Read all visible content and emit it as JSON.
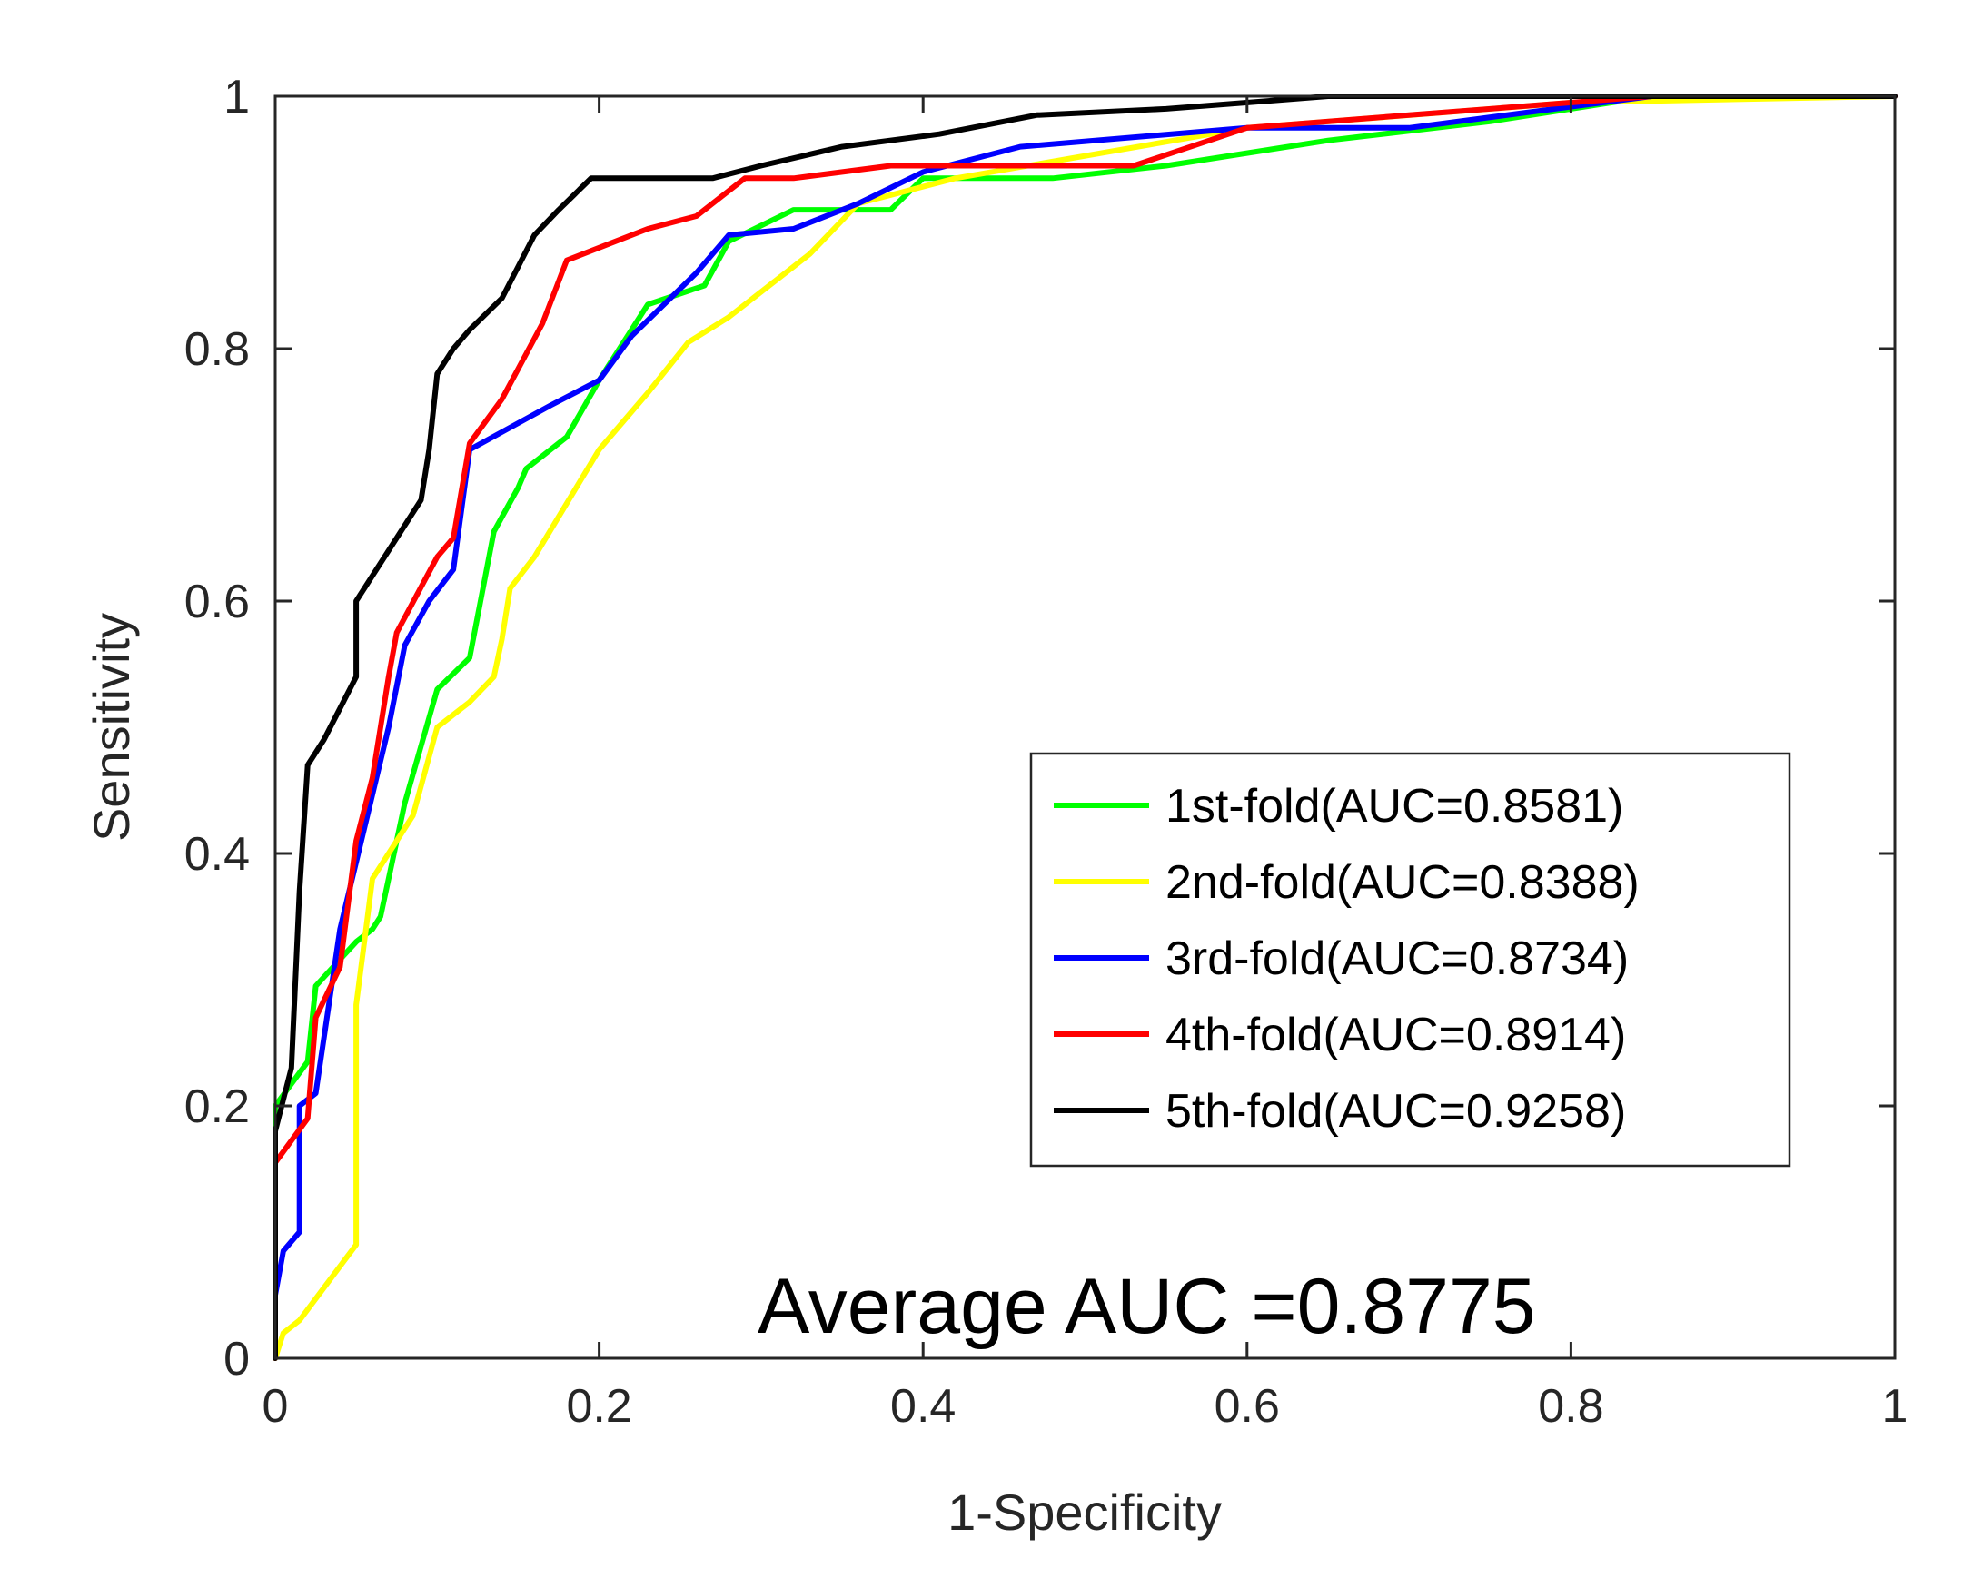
{
  "chart_data": {
    "type": "line",
    "title": "",
    "xlabel": "1-Specificity",
    "ylabel": "Sensitivity",
    "xlim": [
      0,
      1
    ],
    "ylim": [
      0,
      1
    ],
    "xticks": [
      "0",
      "0.2",
      "0.4",
      "0.6",
      "0.8",
      "1"
    ],
    "yticks": [
      "0",
      "0.2",
      "0.4",
      "0.6",
      "0.8",
      "1"
    ],
    "grid": false,
    "legend_position": "center-right",
    "annotation": "Average AUC =0.8775",
    "series": [
      {
        "name": "1st-fold(AUC=0.8581)",
        "color": "#00ff00",
        "x": [
          0,
          0,
          0.02,
          0.025,
          0.05,
          0.06,
          0.065,
          0.08,
          0.1,
          0.12,
          0.135,
          0.15,
          0.155,
          0.18,
          0.2,
          0.23,
          0.265,
          0.28,
          0.32,
          0.35,
          0.38,
          0.4,
          0.48,
          0.55,
          0.65,
          0.75,
          0.85,
          1
        ],
        "y": [
          0,
          0.2,
          0.235,
          0.295,
          0.33,
          0.34,
          0.35,
          0.44,
          0.53,
          0.555,
          0.655,
          0.69,
          0.705,
          0.73,
          0.775,
          0.835,
          0.85,
          0.885,
          0.91,
          0.91,
          0.91,
          0.935,
          0.935,
          0.945,
          0.965,
          0.98,
          1,
          1
        ]
      },
      {
        "name": "2nd-fold(AUC=0.8388)",
        "color": "#ffff00",
        "x": [
          0,
          0.005,
          0.015,
          0.05,
          0.05,
          0.055,
          0.06,
          0.07,
          0.085,
          0.1,
          0.12,
          0.135,
          0.14,
          0.145,
          0.16,
          0.2,
          0.23,
          0.255,
          0.28,
          0.33,
          0.36,
          0.42,
          0.6,
          0.8,
          1
        ],
        "y": [
          0,
          0.02,
          0.03,
          0.09,
          0.28,
          0.33,
          0.38,
          0.4,
          0.43,
          0.5,
          0.52,
          0.54,
          0.57,
          0.61,
          0.635,
          0.72,
          0.765,
          0.805,
          0.825,
          0.875,
          0.915,
          0.935,
          0.975,
          0.995,
          1
        ]
      },
      {
        "name": "3rd-fold(AUC=0.8734)",
        "color": "#0000ff",
        "x": [
          0,
          0.005,
          0.015,
          0.015,
          0.025,
          0.04,
          0.055,
          0.07,
          0.08,
          0.095,
          0.11,
          0.12,
          0.17,
          0.2,
          0.22,
          0.26,
          0.28,
          0.32,
          0.36,
          0.4,
          0.46,
          0.6,
          0.7,
          0.85,
          1
        ],
        "y": [
          0.05,
          0.085,
          0.1,
          0.2,
          0.21,
          0.34,
          0.42,
          0.5,
          0.565,
          0.6,
          0.625,
          0.72,
          0.755,
          0.775,
          0.81,
          0.86,
          0.89,
          0.895,
          0.915,
          0.94,
          0.96,
          0.975,
          0.975,
          1,
          1
        ]
      },
      {
        "name": "4th-fold(AUC=0.8914)",
        "color": "#ff0000",
        "x": [
          0,
          0,
          0.02,
          0.025,
          0.04,
          0.05,
          0.06,
          0.07,
          0.075,
          0.1,
          0.11,
          0.12,
          0.14,
          0.165,
          0.18,
          0.23,
          0.26,
          0.29,
          0.32,
          0.38,
          0.43,
          0.53,
          0.6,
          0.7,
          0.85,
          1
        ],
        "y": [
          0,
          0.155,
          0.19,
          0.27,
          0.31,
          0.41,
          0.46,
          0.54,
          0.575,
          0.635,
          0.65,
          0.725,
          0.76,
          0.82,
          0.87,
          0.895,
          0.905,
          0.935,
          0.935,
          0.945,
          0.945,
          0.945,
          0.975,
          0.985,
          1,
          1
        ]
      },
      {
        "name": "5th-fold(AUC=0.9258)",
        "color": "#000000",
        "x": [
          0,
          0,
          0.01,
          0.015,
          0.02,
          0.03,
          0.05,
          0.05,
          0.07,
          0.09,
          0.095,
          0.1,
          0.11,
          0.12,
          0.14,
          0.16,
          0.175,
          0.195,
          0.27,
          0.3,
          0.35,
          0.41,
          0.47,
          0.55,
          0.65,
          0.8,
          1
        ],
        "y": [
          0,
          0.18,
          0.23,
          0.37,
          0.47,
          0.49,
          0.54,
          0.6,
          0.64,
          0.68,
          0.72,
          0.78,
          0.8,
          0.815,
          0.84,
          0.89,
          0.91,
          0.935,
          0.935,
          0.945,
          0.96,
          0.97,
          0.985,
          0.99,
          1,
          1,
          1
        ]
      }
    ]
  }
}
